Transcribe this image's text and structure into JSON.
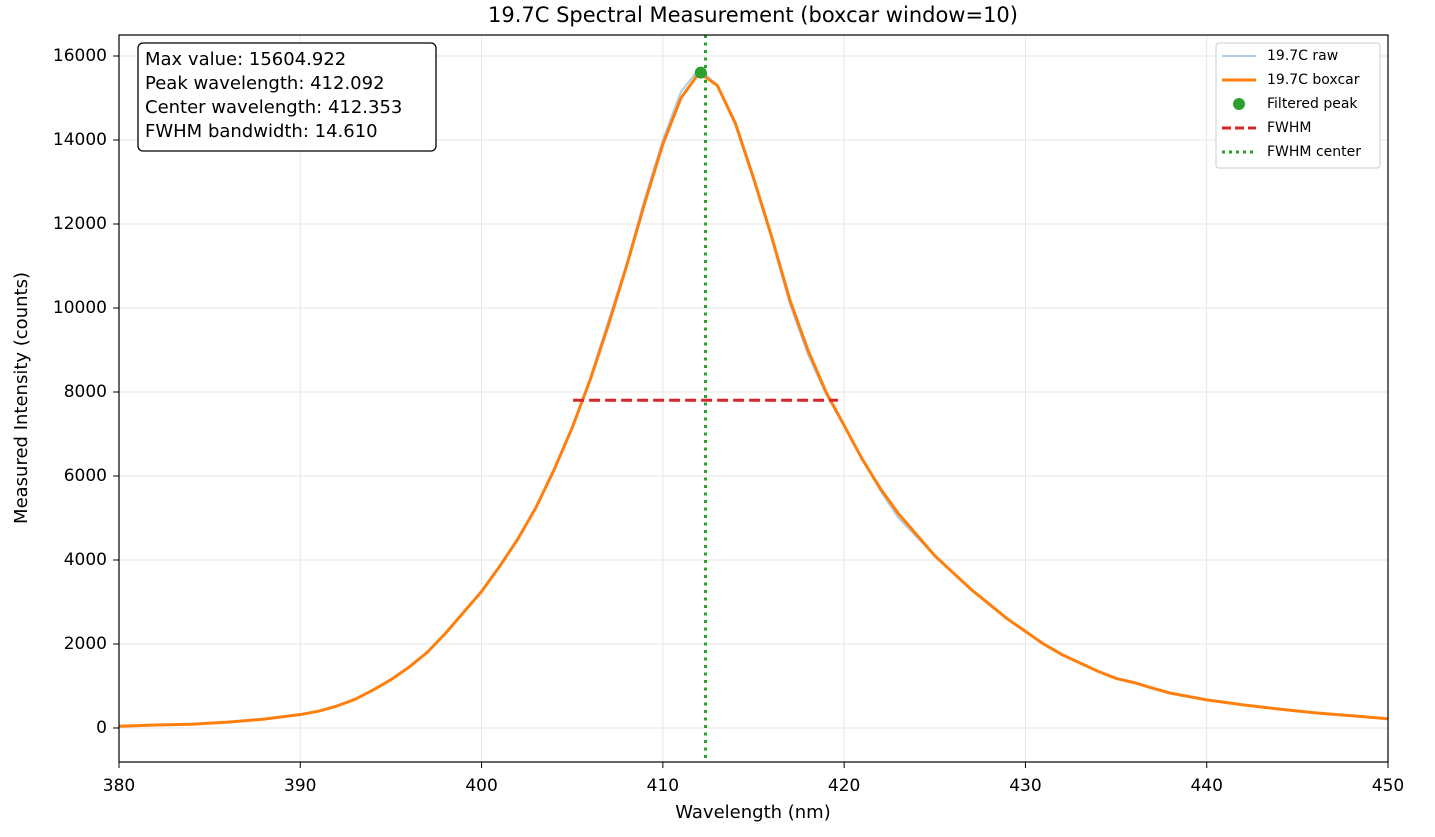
{
  "chart_data": {
    "type": "line",
    "title": "19.7C Spectral Measurement (boxcar window=10)",
    "x_label": "Wavelength (nm)",
    "y_label": "Measured Intensity (counts)",
    "x": [
      380,
      382,
      384,
      386,
      388,
      390,
      391,
      392,
      393,
      394,
      395,
      396,
      397,
      398,
      399,
      400,
      401,
      402,
      403,
      404,
      405,
      406,
      407,
      408,
      409,
      410,
      411,
      412,
      413,
      414,
      415,
      416,
      417,
      418,
      419,
      420,
      421,
      422,
      423,
      424,
      425,
      426,
      427,
      428,
      429,
      430,
      431,
      432,
      433,
      434,
      435,
      436,
      437,
      438,
      439,
      440,
      442,
      444,
      446,
      448,
      450
    ],
    "series": [
      {
        "name": "19.7C raw",
        "color": "#aecbe6",
        "width": 2,
        "values": [
          40,
          70,
          90,
          140,
          210,
          320,
          400,
          520,
          680,
          900,
          1150,
          1450,
          1800,
          2250,
          2750,
          3250,
          3850,
          4500,
          5250,
          6150,
          7150,
          8350,
          9700,
          11050,
          12600,
          14000,
          15150,
          15700,
          15300,
          14350,
          13050,
          11650,
          10100,
          8900,
          7950,
          7200,
          6400,
          5650,
          5000,
          4550,
          4100,
          3700,
          3300,
          2950,
          2600,
          2300,
          2000,
          1750,
          1550,
          1350,
          1180,
          1080,
          950,
          830,
          750,
          670,
          550,
          450,
          360,
          290,
          220
        ]
      },
      {
        "name": "19.7C boxcar",
        "color": "#ff7f0e",
        "width": 3,
        "values": [
          40,
          70,
          90,
          140,
          210,
          320,
          400,
          520,
          680,
          900,
          1150,
          1450,
          1800,
          2250,
          2750,
          3250,
          3850,
          4500,
          5250,
          6150,
          7150,
          8300,
          9600,
          11000,
          12500,
          13900,
          15000,
          15600,
          15300,
          14400,
          13100,
          11700,
          10200,
          9000,
          8000,
          7200,
          6400,
          5700,
          5100,
          4600,
          4100,
          3700,
          3300,
          2950,
          2600,
          2300,
          2000,
          1750,
          1550,
          1350,
          1180,
          1080,
          950,
          830,
          750,
          670,
          550,
          450,
          360,
          290,
          220
        ]
      }
    ],
    "peak": {
      "name": "Filtered peak",
      "color": "#2ca02c",
      "x": 412.092,
      "y": 15604.922
    },
    "fwhm": {
      "name": "FWHM",
      "color": "#d62728",
      "y": 7802.461,
      "x_start": 405.048,
      "x_end": 419.658
    },
    "fwhm_center": {
      "name": "FWHM center",
      "color": "#2ca02c",
      "x": 412.353
    },
    "annotations": [
      "Max value: 15604.922",
      "Peak wavelength: 412.092",
      "Center wavelength: 412.353",
      "FWHM bandwidth: 14.610"
    ],
    "xlim": [
      380,
      450
    ],
    "ylim": [
      -810,
      16500
    ],
    "xticks": [
      380,
      390,
      400,
      410,
      420,
      430,
      440,
      450
    ],
    "yticks": [
      0,
      2000,
      4000,
      6000,
      8000,
      10000,
      12000,
      14000,
      16000
    ],
    "grid": true,
    "legend": "upper right"
  }
}
